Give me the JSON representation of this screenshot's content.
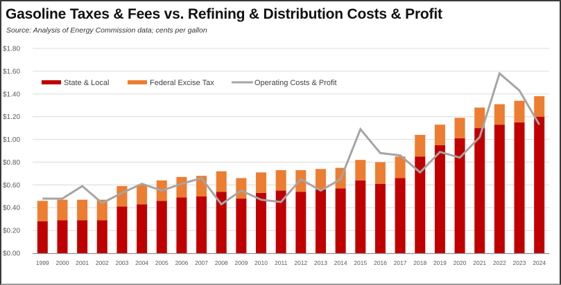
{
  "chart_data": {
    "type": "bar",
    "subtype": "stacked bar with line overlay",
    "title": "Gasoline Taxes & Fees vs. Refining & Distribution Costs & Profit",
    "subtitle": "Source:  Analysis of Energy Commission data; cents per gallon",
    "xlabel": "",
    "ylabel": "",
    "ylim": [
      0,
      1.8
    ],
    "yticks": [
      0,
      0.2,
      0.4,
      0.6,
      0.8,
      1.0,
      1.2,
      1.4,
      1.6,
      1.8
    ],
    "ytick_labels": [
      "$0.00",
      "$0.20",
      "$0.40",
      "$0.60",
      "$0.80",
      "$1.00",
      "$1.20",
      "$1.40",
      "$1.60",
      "$1.80"
    ],
    "grid": true,
    "legend_position": "top-left",
    "categories": [
      "1999",
      "2000",
      "2001",
      "2002",
      "2003",
      "2004",
      "2005",
      "2006",
      "2007",
      "2008",
      "2009",
      "2010",
      "2011",
      "2012",
      "2013",
      "2014",
      "2015",
      "2016",
      "2017",
      "2018",
      "2019",
      "2020",
      "2021",
      "2022",
      "2023",
      "2024"
    ],
    "series": [
      {
        "name": "State & Local",
        "type": "bar",
        "stack": "taxes",
        "color": "#c00000",
        "values": [
          0.28,
          0.29,
          0.29,
          0.29,
          0.41,
          0.43,
          0.46,
          0.49,
          0.5,
          0.54,
          0.48,
          0.53,
          0.55,
          0.54,
          0.56,
          0.57,
          0.64,
          0.61,
          0.66,
          0.85,
          0.95,
          1.01,
          1.1,
          1.13,
          1.15,
          1.2
        ]
      },
      {
        "name": "Federal Excise Tax",
        "type": "bar",
        "stack": "taxes",
        "color": "#ed7d31",
        "values": [
          0.18,
          0.18,
          0.18,
          0.18,
          0.18,
          0.17,
          0.18,
          0.18,
          0.18,
          0.18,
          0.18,
          0.18,
          0.18,
          0.19,
          0.18,
          0.18,
          0.18,
          0.19,
          0.19,
          0.19,
          0.18,
          0.18,
          0.18,
          0.18,
          0.19,
          0.18
        ]
      },
      {
        "name": "Operating Costs & Profit",
        "type": "line",
        "color": "#a5a5a5",
        "values": [
          0.48,
          0.48,
          0.59,
          0.44,
          0.53,
          0.61,
          0.55,
          0.61,
          0.66,
          0.43,
          0.55,
          0.47,
          0.45,
          0.65,
          0.55,
          0.65,
          1.09,
          0.88,
          0.86,
          0.71,
          0.89,
          0.84,
          1.02,
          1.58,
          1.43,
          1.13
        ]
      }
    ]
  }
}
